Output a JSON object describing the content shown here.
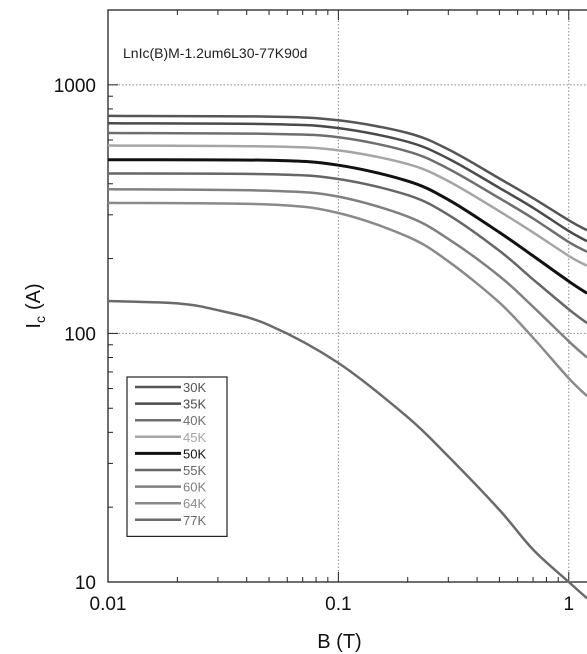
{
  "chart_data": {
    "type": "line",
    "annotation": "LnIc(B)M-1.2um6L30-77K90d",
    "xlabel": "B (T)",
    "ylabel_main": "I",
    "ylabel_sub": "c",
    "ylabel_unit": "(A)",
    "x_scale": "log",
    "y_scale": "log",
    "xlim": [
      0.01,
      1.2
    ],
    "ylim": [
      10,
      2000
    ],
    "x_ticks": [
      {
        "value": 0.01,
        "label": "0.01"
      },
      {
        "value": 0.1,
        "label": "0.1"
      },
      {
        "value": 1,
        "label": "1"
      }
    ],
    "y_ticks": [
      {
        "value": 10,
        "label": "10"
      },
      {
        "value": 100,
        "label": "100"
      },
      {
        "value": 1000,
        "label": "1000"
      }
    ],
    "grid": true,
    "legend_position": "bottom-left",
    "series": [
      {
        "name": "30K",
        "color": "#555555",
        "width": 2.5,
        "x": [
          0.01,
          0.05,
          0.1,
          0.2,
          0.3,
          0.5,
          0.7,
          1.0,
          1.2
        ],
        "y": [
          750,
          745,
          720,
          640,
          550,
          420,
          350,
          285,
          260
        ]
      },
      {
        "name": "35K",
        "color": "#4a4a4a",
        "width": 2.5,
        "x": [
          0.01,
          0.05,
          0.1,
          0.2,
          0.3,
          0.5,
          0.7,
          1.0,
          1.2
        ],
        "y": [
          700,
          695,
          670,
          590,
          505,
          385,
          320,
          258,
          235
        ]
      },
      {
        "name": "40K",
        "color": "#6e6e6e",
        "width": 2.5,
        "x": [
          0.01,
          0.05,
          0.1,
          0.2,
          0.3,
          0.5,
          0.7,
          1.0,
          1.2
        ],
        "y": [
          640,
          635,
          615,
          540,
          460,
          350,
          290,
          233,
          213
        ]
      },
      {
        "name": "45K",
        "color": "#a5a5a5",
        "width": 2.5,
        "x": [
          0.01,
          0.05,
          0.1,
          0.2,
          0.3,
          0.5,
          0.7,
          1.0,
          1.2
        ],
        "y": [
          570,
          565,
          545,
          480,
          410,
          310,
          255,
          205,
          187
        ]
      },
      {
        "name": "50K",
        "color": "#111111",
        "width": 3,
        "x": [
          0.01,
          0.05,
          0.1,
          0.2,
          0.3,
          0.5,
          0.7,
          1.0,
          1.2
        ],
        "y": [
          500,
          497,
          475,
          410,
          345,
          255,
          205,
          162,
          145
        ]
      },
      {
        "name": "55K",
        "color": "#666666",
        "width": 2.5,
        "x": [
          0.01,
          0.05,
          0.1,
          0.2,
          0.3,
          0.5,
          0.7,
          1.0,
          1.2
        ],
        "y": [
          440,
          437,
          418,
          360,
          300,
          215,
          165,
          125,
          110
        ]
      },
      {
        "name": "60K",
        "color": "#808080",
        "width": 2.5,
        "x": [
          0.01,
          0.05,
          0.1,
          0.2,
          0.3,
          0.5,
          0.7,
          1.0,
          1.2
        ],
        "y": [
          380,
          375,
          355,
          295,
          240,
          170,
          128,
          93,
          80
        ]
      },
      {
        "name": "64K",
        "color": "#8a8a8a",
        "width": 2.5,
        "x": [
          0.01,
          0.05,
          0.1,
          0.2,
          0.3,
          0.5,
          0.7,
          1.0,
          1.2
        ],
        "y": [
          335,
          330,
          305,
          245,
          195,
          133,
          96,
          66,
          56
        ]
      },
      {
        "name": "77K",
        "color": "#6a6a6a",
        "width": 2.5,
        "x": [
          0.01,
          0.02,
          0.03,
          0.05,
          0.1,
          0.2,
          0.3,
          0.5,
          0.7,
          1.0,
          1.2
        ],
        "y": [
          135,
          132,
          124,
          108,
          76,
          46,
          32,
          19.5,
          13.5,
          10,
          8.6
        ]
      }
    ]
  }
}
